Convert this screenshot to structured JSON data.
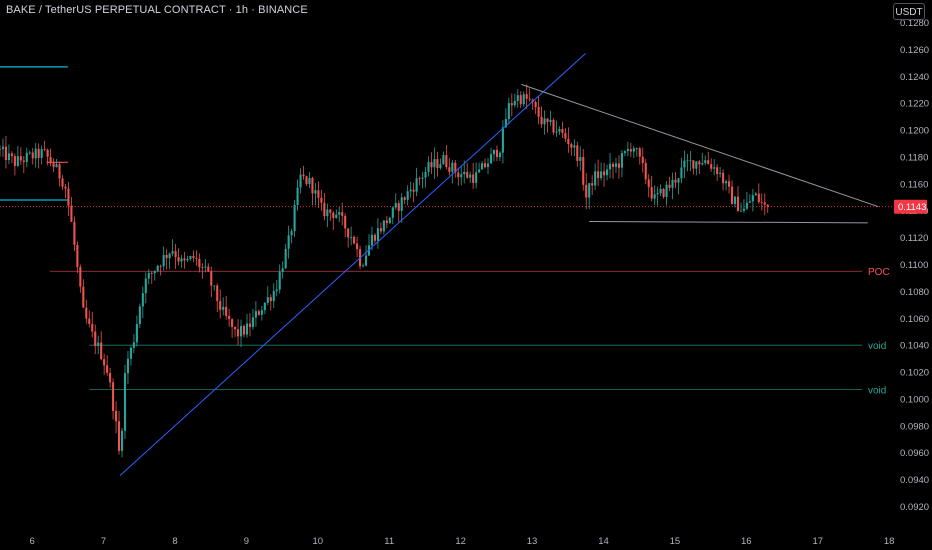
{
  "header": {
    "title": "BAKE / TetherUS PERPETUAL CONTRACT · 1h · BINANCE",
    "currency": "USDT"
  },
  "chart_data": {
    "type": "candlestick",
    "symbol": "BAKE / TetherUS PERPETUAL CONTRACT",
    "interval": "1h",
    "exchange": "BINANCE",
    "currency": "USDT",
    "y_ticks": [
      "0.1280",
      "0.1260",
      "0.1240",
      "0.1220",
      "0.1200",
      "0.1180",
      "0.1160",
      "0.1140",
      "0.1120",
      "0.1100",
      "0.1080",
      "0.1060",
      "0.1040",
      "0.1020",
      "0.1000",
      "0.0980",
      "0.0960",
      "0.0940",
      "0.0920"
    ],
    "x_ticks": [
      "6",
      "7",
      "8",
      "9",
      "10",
      "11",
      "12",
      "13",
      "14",
      "15",
      "16",
      "17",
      "18"
    ],
    "ylim": [
      0.091,
      0.13
    ],
    "xlim": [
      5.55,
      18.6
    ],
    "last_price": {
      "value": 0.1143,
      "label": "0.1143",
      "color": "#f23645"
    },
    "levels": [
      {
        "name": "POC",
        "label": "POC",
        "value": 0.1095,
        "x_start": 6.25,
        "color": "#f7525f"
      },
      {
        "name": "void-1",
        "label": "void",
        "value": 0.104,
        "x_start": 6.8,
        "color": "#26a69a"
      },
      {
        "name": "void-2",
        "label": "void",
        "value": 0.1007,
        "x_start": 6.8,
        "color": "#26a69a"
      }
    ],
    "colors": {
      "up": "#26a69a",
      "down": "#ef5350",
      "trendline": "#2962ff",
      "triangle": "#9598a1",
      "cyan": "#00bcd4"
    },
    "trendlines": [
      {
        "name": "blue-support",
        "from": [
          7.23,
          0.0943
        ],
        "to": [
          13.75,
          0.1257
        ]
      },
      {
        "name": "triangle-upper",
        "from": [
          12.85,
          0.1234
        ],
        "to": [
          17.85,
          0.1143
        ]
      },
      {
        "name": "triangle-lower",
        "from": [
          13.8,
          0.1132
        ],
        "to": [
          17.7,
          0.1131
        ]
      }
    ],
    "short_lines": [
      {
        "name": "left-cyan-top",
        "x": [
          5.55,
          6.5
        ],
        "y": 0.1247,
        "color": "#00bcd4"
      },
      {
        "name": "left-cyan-mid",
        "x": [
          5.55,
          6.5
        ],
        "y": 0.1148,
        "color": "#00bcd4"
      },
      {
        "name": "left-red",
        "x": [
          6.2,
          6.5
        ],
        "y": 0.1176,
        "color": "#ef5350"
      }
    ],
    "price_path": [
      [
        5.55,
        0.1186
      ],
      [
        5.8,
        0.1176
      ],
      [
        6.0,
        0.118
      ],
      [
        6.2,
        0.1183
      ],
      [
        6.35,
        0.1173
      ],
      [
        6.5,
        0.116
      ],
      [
        6.6,
        0.1128
      ],
      [
        6.75,
        0.1065
      ],
      [
        6.9,
        0.1045
      ],
      [
        7.0,
        0.1035
      ],
      [
        7.1,
        0.102
      ],
      [
        7.2,
        0.0988
      ],
      [
        7.27,
        0.0955
      ],
      [
        7.35,
        0.1025
      ],
      [
        7.45,
        0.104
      ],
      [
        7.6,
        0.1085
      ],
      [
        7.8,
        0.11
      ],
      [
        8.0,
        0.1112
      ],
      [
        8.15,
        0.11
      ],
      [
        8.3,
        0.1105
      ],
      [
        8.5,
        0.1092
      ],
      [
        8.7,
        0.1065
      ],
      [
        8.9,
        0.1048
      ],
      [
        9.05,
        0.1052
      ],
      [
        9.25,
        0.1068
      ],
      [
        9.45,
        0.1082
      ],
      [
        9.65,
        0.112
      ],
      [
        9.8,
        0.1165
      ],
      [
        9.95,
        0.116
      ],
      [
        10.1,
        0.114
      ],
      [
        10.3,
        0.1138
      ],
      [
        10.55,
        0.1118
      ],
      [
        10.65,
        0.11
      ],
      [
        10.8,
        0.112
      ],
      [
        11.0,
        0.1132
      ],
      [
        11.2,
        0.1146
      ],
      [
        11.4,
        0.116
      ],
      [
        11.6,
        0.1172
      ],
      [
        11.8,
        0.1178
      ],
      [
        12.0,
        0.1168
      ],
      [
        12.25,
        0.1165
      ],
      [
        12.45,
        0.1178
      ],
      [
        12.6,
        0.1188
      ],
      [
        12.7,
        0.1216
      ],
      [
        12.82,
        0.1225
      ],
      [
        13.0,
        0.1222
      ],
      [
        13.2,
        0.1205
      ],
      [
        13.4,
        0.12
      ],
      [
        13.55,
        0.1192
      ],
      [
        13.7,
        0.118
      ],
      [
        13.8,
        0.115
      ],
      [
        13.9,
        0.1165
      ],
      [
        14.05,
        0.1168
      ],
      [
        14.25,
        0.1175
      ],
      [
        14.45,
        0.119
      ],
      [
        14.6,
        0.117
      ],
      [
        14.75,
        0.1148
      ],
      [
        15.0,
        0.116
      ],
      [
        15.2,
        0.1175
      ],
      [
        15.45,
        0.1178
      ],
      [
        15.65,
        0.117
      ],
      [
        15.85,
        0.1148
      ],
      [
        16.0,
        0.114
      ],
      [
        16.15,
        0.1152
      ],
      [
        16.3,
        0.1143
      ]
    ]
  }
}
